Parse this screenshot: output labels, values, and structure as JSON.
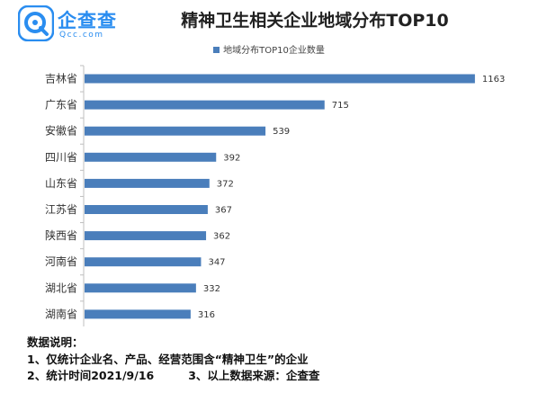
{
  "logo": {
    "cn": "企查查",
    "en": "Qcc.com"
  },
  "colors": {
    "bar": "#4a7ebb",
    "brand": "#2a8df0"
  },
  "chart_data": {
    "type": "bar",
    "orientation": "horizontal",
    "title": "精神卫生相关企业地域分布TOP10",
    "legend_position": "top",
    "grid": false,
    "categories": [
      "吉林省",
      "广东省",
      "安徽省",
      "四川省",
      "山东省",
      "江苏省",
      "陕西省",
      "河南省",
      "湖北省",
      "湖南省"
    ],
    "series": [
      {
        "name": "地域分布TOP10企业数量",
        "values": [
          1163,
          715,
          539,
          392,
          372,
          367,
          362,
          347,
          332,
          316
        ]
      }
    ],
    "xlim": [
      0,
      1300
    ]
  },
  "notes": {
    "heading": "数据说明：",
    "line1": "1、仅统计企业名、产品、经营范围含“精神卫生”的企业",
    "line2a": "2、统计时间2021/9/16",
    "line2b": "3、以上数据来源：企查查"
  }
}
